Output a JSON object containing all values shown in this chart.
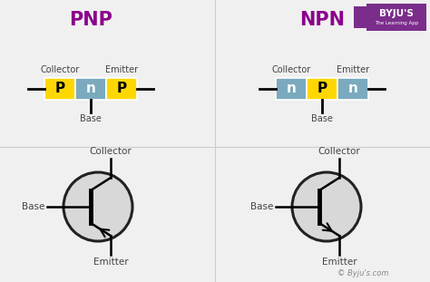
{
  "title_pnp": "PNP",
  "title_npn": "NPN",
  "title_color": "#8B008B",
  "bg_color": "#f0f0f0",
  "yellow_color": "#FFD700",
  "teal_color": "#7BAABE",
  "text_color": "#444444",
  "divider_color": "#cccccc",
  "circle_fill": "#d8d8d8",
  "circle_edge": "#222222",
  "watermark": "© Byju's.com",
  "byju_bg": "#7B2D8B"
}
